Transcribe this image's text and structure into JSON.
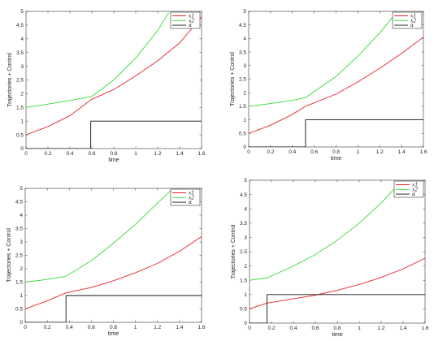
{
  "chart_data": [
    {
      "type": "line",
      "xlabel": "time",
      "ylabel": "Trajectories + Control",
      "xlim": [
        0,
        1.6
      ],
      "ylim": [
        0,
        5
      ],
      "xticks": [
        "0",
        "0.2",
        "0.4",
        "0.6",
        "0.8",
        "1",
        "1.2",
        "1.4",
        "1.6"
      ],
      "yticks": [
        "0",
        "0.5",
        "1",
        "1.5",
        "2",
        "2.5",
        "3",
        "3.5",
        "4",
        "4.5",
        "5"
      ],
      "legend_position": "top-right",
      "legend": [
        "x1",
        "x2",
        "α"
      ],
      "series": [
        {
          "name": "x1",
          "color": "#e8232a",
          "x": [
            0,
            0.2,
            0.4,
            0.6,
            0.8,
            1.0,
            1.2,
            1.4,
            1.6
          ],
          "y": [
            0.5,
            0.8,
            1.2,
            1.8,
            2.15,
            2.65,
            3.2,
            3.85,
            4.8
          ]
        },
        {
          "name": "x2",
          "color": "#33dd33",
          "x": [
            0,
            0.2,
            0.4,
            0.6,
            0.8,
            1.0,
            1.2,
            1.3
          ],
          "y": [
            1.5,
            1.62,
            1.75,
            1.9,
            2.5,
            3.3,
            4.3,
            4.95
          ]
        },
        {
          "name": "α",
          "color": "#111111",
          "x": [
            0,
            0.59,
            0.59,
            1.6
          ],
          "y": [
            0,
            0,
            1,
            1
          ]
        }
      ]
    },
    {
      "type": "line",
      "xlabel": "time",
      "ylabel": "Trajectories + Control",
      "xlim": [
        0,
        1.6
      ],
      "ylim": [
        0,
        5
      ],
      "xticks": [
        "0",
        "0.2",
        "0.4",
        "0.6",
        "0.8",
        "1",
        "1.2",
        "1.4",
        "1.6"
      ],
      "yticks": [
        "0",
        "0.5",
        "1",
        "1.5",
        "2",
        "2.5",
        "3",
        "3.5",
        "4",
        "4.5",
        "5"
      ],
      "legend_position": "top-right",
      "legend": [
        "x1",
        "x2",
        "α"
      ],
      "series": [
        {
          "name": "x1",
          "color": "#e8232a",
          "x": [
            0,
            0.2,
            0.4,
            0.52,
            0.8,
            1.0,
            1.2,
            1.4,
            1.6
          ],
          "y": [
            0.5,
            0.8,
            1.2,
            1.5,
            1.95,
            2.4,
            2.9,
            3.45,
            4.05
          ]
        },
        {
          "name": "x2",
          "color": "#33dd33",
          "x": [
            0,
            0.2,
            0.4,
            0.52,
            0.8,
            1.0,
            1.2,
            1.35
          ],
          "y": [
            1.5,
            1.6,
            1.72,
            1.82,
            2.6,
            3.35,
            4.2,
            4.95
          ]
        },
        {
          "name": "α",
          "color": "#111111",
          "x": [
            0,
            0.52,
            0.52,
            1.6
          ],
          "y": [
            0,
            0,
            1,
            1
          ]
        }
      ]
    },
    {
      "type": "line",
      "xlabel": "time",
      "ylabel": "Trajectories + Control",
      "xlim": [
        0,
        1.6
      ],
      "ylim": [
        0,
        5
      ],
      "xticks": [
        "0",
        "0.2",
        "0.4",
        "0.6",
        "0.8",
        "1",
        "1.2",
        "1.4",
        "1.6"
      ],
      "yticks": [
        "0",
        "0.5",
        "1",
        "1.5",
        "2",
        "2.5",
        "3",
        "3.5",
        "4",
        "4.5",
        "5"
      ],
      "legend_position": "top-right",
      "legend": [
        "x1",
        "x2",
        "α"
      ],
      "series": [
        {
          "name": "x1",
          "color": "#e8232a",
          "x": [
            0,
            0.2,
            0.37,
            0.6,
            0.8,
            1.0,
            1.2,
            1.4,
            1.6
          ],
          "y": [
            0.5,
            0.8,
            1.1,
            1.3,
            1.55,
            1.85,
            2.2,
            2.65,
            3.2
          ]
        },
        {
          "name": "x2",
          "color": "#33dd33",
          "x": [
            0,
            0.2,
            0.37,
            0.6,
            0.8,
            1.0,
            1.2,
            1.33
          ],
          "y": [
            1.5,
            1.6,
            1.72,
            2.3,
            2.95,
            3.65,
            4.45,
            4.95
          ]
        },
        {
          "name": "α",
          "color": "#111111",
          "x": [
            0,
            0.37,
            0.37,
            1.6
          ],
          "y": [
            0,
            0,
            1,
            1
          ]
        }
      ]
    },
    {
      "type": "line",
      "xlabel": "time",
      "ylabel": "Trajectories + Control",
      "xlim": [
        0,
        1.6
      ],
      "ylim": [
        0,
        5
      ],
      "xticks": [
        "0",
        "0.2",
        "0.4",
        "0.6",
        "0.8",
        "1",
        "1.2",
        "1.4",
        "1.6"
      ],
      "yticks": [
        "0",
        "0.5",
        "1",
        "1.5",
        "2",
        "2.5",
        "3",
        "3.5",
        "4",
        "4.5",
        "5"
      ],
      "legend_position": "top-right",
      "legend": [
        "x1",
        "x2",
        "α"
      ],
      "series": [
        {
          "name": "x1",
          "color": "#e8232a",
          "x": [
            0,
            0.16,
            0.4,
            0.6,
            0.8,
            1.0,
            1.2,
            1.4,
            1.6
          ],
          "y": [
            0.5,
            0.7,
            0.85,
            0.98,
            1.15,
            1.35,
            1.6,
            1.9,
            2.27
          ]
        },
        {
          "name": "x2",
          "color": "#33dd33",
          "x": [
            0,
            0.16,
            0.4,
            0.6,
            0.8,
            1.0,
            1.2,
            1.33
          ],
          "y": [
            1.5,
            1.58,
            2.0,
            2.4,
            2.9,
            3.5,
            4.2,
            4.75
          ]
        },
        {
          "name": "α",
          "color": "#111111",
          "x": [
            0,
            0.16,
            0.16,
            1.6
          ],
          "y": [
            0,
            0,
            1,
            1
          ]
        }
      ]
    }
  ]
}
